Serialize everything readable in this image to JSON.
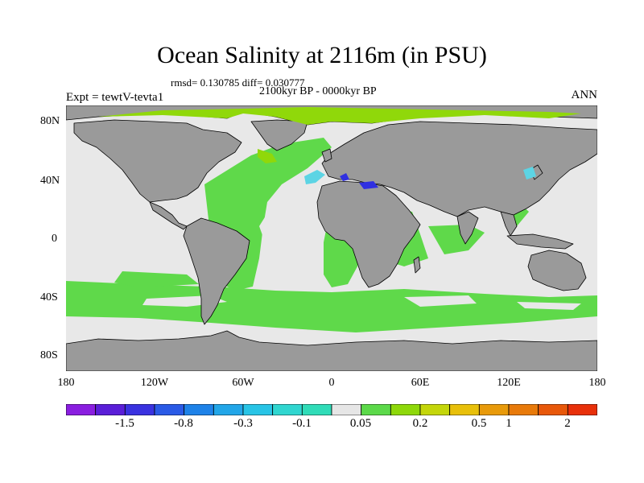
{
  "header": {
    "title": "Ocean Salinity at 2116m (in PSU)",
    "stats": "rmsd= 0.130785 diff= 0.030777",
    "period": "2100kyr BP - 0000kyr BP",
    "experiment": "Expt = tewtV-tevta1",
    "season": "ANN"
  },
  "axes": {
    "lat_labels": [
      "80N",
      "40N",
      "0",
      "40S",
      "80S"
    ],
    "lon_labels": [
      "180",
      "120W",
      "60W",
      "0",
      "60E",
      "120E",
      "180"
    ]
  },
  "colors": {
    "land": "#9a9a9a",
    "near_zero": "#e8e8e8",
    "positive_small": "#5fd94a",
    "positive_mid": "#90d80a",
    "negative_small": "#5cd4e4",
    "negative_strong": "#3030e0",
    "coastline": "#000000"
  },
  "colorbar": {
    "colors": [
      "#8a1ee0",
      "#5a1ed8",
      "#3a32e0",
      "#2a5ae6",
      "#1e82e8",
      "#22a6e8",
      "#28c4e6",
      "#30d6d0",
      "#30dcb8",
      "#e6e6e6",
      "#5cd94a",
      "#8ed80a",
      "#c4d60a",
      "#e8c00a",
      "#e89a0a",
      "#e87a0a",
      "#e8580a",
      "#e8300a"
    ],
    "labels": [
      "-1.5",
      "-0.8",
      "-0.3",
      "-0.1",
      "0.05",
      "0.2",
      "0.5",
      "1",
      "2"
    ]
  }
}
